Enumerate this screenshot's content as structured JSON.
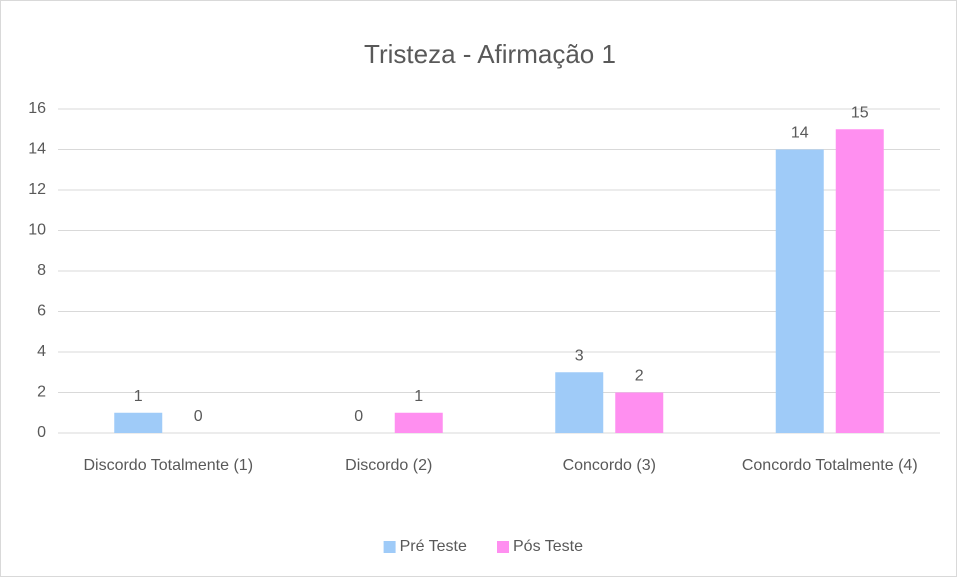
{
  "chart_data": {
    "type": "bar",
    "title": "Tristeza - Afirmação 1",
    "categories": [
      "Discordo Totalmente (1)",
      "Discordo (2)",
      "Concordo (3)",
      "Concordo Totalmente (4)"
    ],
    "series": [
      {
        "name": "Pré Teste",
        "color": "#9fcbf8",
        "values": [
          1,
          0,
          3,
          14
        ]
      },
      {
        "name": "Pós Teste",
        "color": "#ff8ff0",
        "values": [
          0,
          1,
          2,
          15
        ]
      }
    ],
    "ylim": [
      0,
      16
    ],
    "yticks": [
      0,
      2,
      4,
      6,
      8,
      10,
      12,
      14,
      16
    ],
    "grid": true,
    "legend": "bottom"
  }
}
